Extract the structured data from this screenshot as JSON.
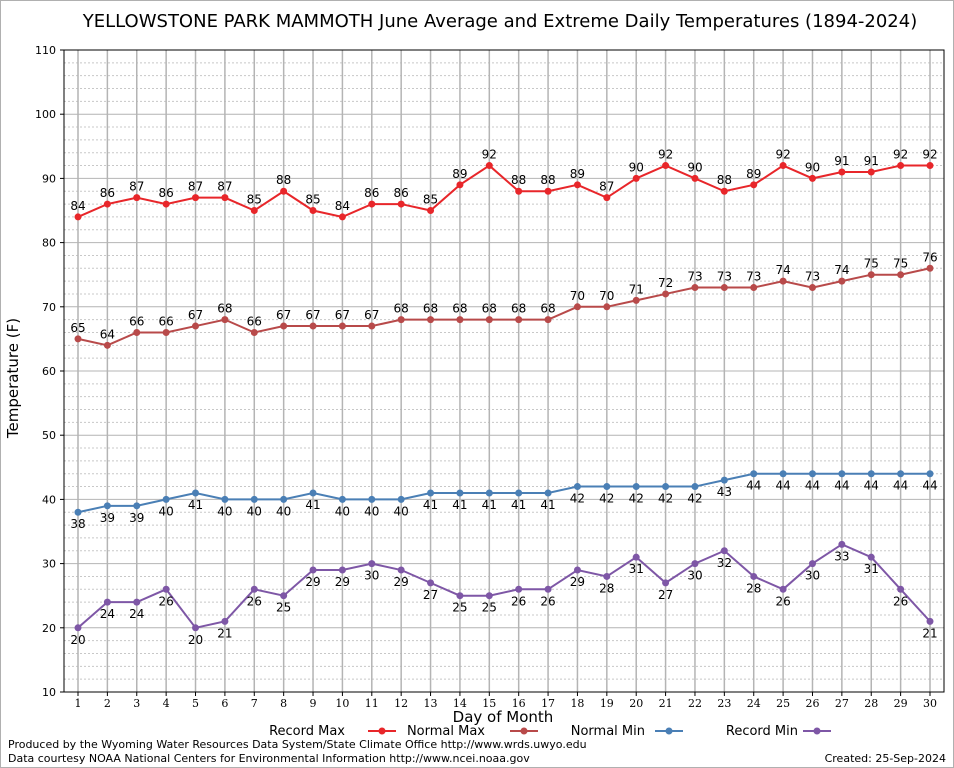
{
  "chart_data": {
    "type": "line",
    "title": "YELLOWSTONE PARK MAMMOTH June Average and Extreme Daily Temperatures (1894-2024)",
    "xlabel": "Day of Month",
    "ylabel": "Temperature (F)",
    "ylim": [
      10,
      110
    ],
    "yticks": [
      "10",
      "20",
      "30",
      "40",
      "50",
      "60",
      "70",
      "80",
      "90",
      "100",
      "110"
    ],
    "xlim": [
      1,
      30
    ],
    "categories": [
      "1",
      "2",
      "3",
      "4",
      "5",
      "6",
      "7",
      "8",
      "9",
      "10",
      "11",
      "12",
      "13",
      "14",
      "15",
      "16",
      "17",
      "18",
      "19",
      "20",
      "21",
      "22",
      "23",
      "24",
      "25",
      "26",
      "27",
      "28",
      "29",
      "30"
    ],
    "grid": true,
    "legend_position": "bottom",
    "series": [
      {
        "name": "Record Max",
        "color": "#e8262a",
        "label_position": "above",
        "values": [
          84,
          86,
          87,
          86,
          87,
          87,
          85,
          88,
          85,
          84,
          86,
          86,
          85,
          89,
          92,
          88,
          88,
          89,
          87,
          90,
          92,
          90,
          88,
          89,
          92,
          90,
          91,
          91,
          92,
          92
        ]
      },
      {
        "name": "Normal Max",
        "color": "#b84a4a",
        "label_position": "above",
        "values": [
          65,
          64,
          66,
          66,
          67,
          68,
          66,
          67,
          67,
          67,
          67,
          68,
          68,
          68,
          68,
          68,
          68,
          70,
          70,
          71,
          72,
          73,
          73,
          73,
          74,
          73,
          74,
          75,
          75,
          76
        ]
      },
      {
        "name": "Normal Min",
        "color": "#4a7fb5",
        "label_position": "below",
        "values": [
          38,
          39,
          39,
          40,
          41,
          40,
          40,
          40,
          41,
          40,
          40,
          40,
          41,
          41,
          41,
          41,
          41,
          42,
          42,
          42,
          42,
          42,
          43,
          44,
          44,
          44,
          44,
          44,
          44,
          44
        ]
      },
      {
        "name": "Record Min",
        "color": "#7e57a6",
        "label_position": "below",
        "values": [
          20,
          24,
          24,
          26,
          20,
          21,
          26,
          25,
          29,
          29,
          30,
          29,
          27,
          25,
          25,
          26,
          26,
          29,
          28,
          31,
          27,
          30,
          32,
          28,
          26,
          30,
          33,
          31,
          26,
          21
        ]
      }
    ]
  },
  "credits": {
    "produced_by": "Produced by the Wyoming Water Resources Data System/State Climate Office http://www.wrds.uwyo.edu",
    "data_courtesy": "Data courtesy NOAA National Centers for Environmental Information http://www.ncei.noaa.gov",
    "created": "Created:  25-Sep-2024"
  }
}
